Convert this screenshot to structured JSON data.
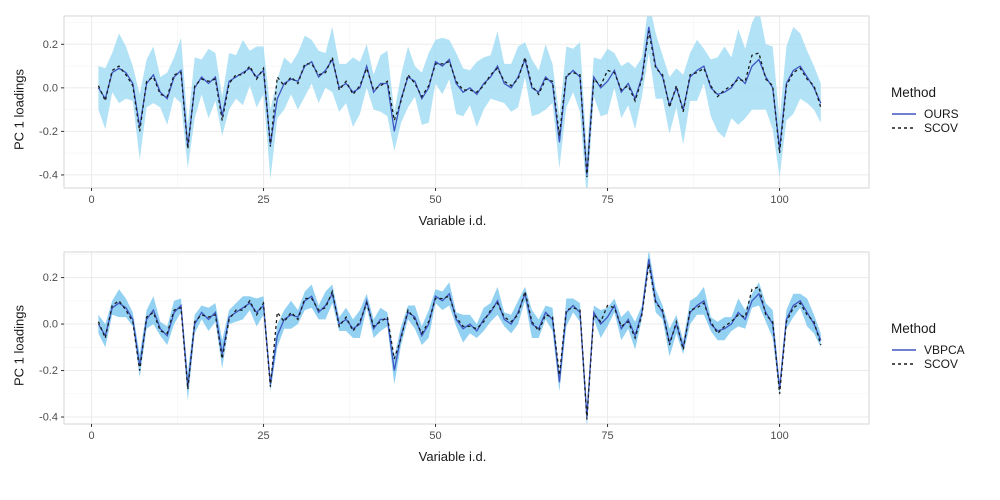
{
  "chart_data": [
    {
      "type": "line",
      "title": "",
      "xlabel": "Variable i.d.",
      "ylabel": "PC 1 loadings",
      "legend_title": "Method",
      "legend_position": "right",
      "grid": true,
      "xlim": [
        -4,
        113
      ],
      "ylim": [
        -0.46,
        0.33
      ],
      "x_ticks": [
        0,
        25,
        50,
        75,
        100
      ],
      "x_tick_labels": [
        "0",
        "25",
        "50",
        "75",
        "100"
      ],
      "x_minor": [
        12.5,
        37.5,
        62.5,
        87.5
      ],
      "y_ticks": [
        0.2,
        0.0,
        -0.2,
        -0.4
      ],
      "y_tick_labels": [
        "0.2",
        "0.0",
        "-0.2",
        "-0.4"
      ],
      "y_minor": [
        0.3,
        0.1,
        -0.1,
        -0.3
      ],
      "colors": {
        "panel_bg": "#ffffff",
        "panel_border": "#d6d6d6",
        "grid_major": "#ebebeb",
        "grid_minor": "#f6f6f6",
        "tick_text": "#4d4d4d",
        "tick_mark": "#333333"
      },
      "band": {
        "color": "#9fdbf4",
        "opacity": 0.8,
        "halfwidths": [
          0.1,
          0.14,
          0.09,
          0.16,
          0.12,
          0.08,
          0.15,
          0.11,
          0.13,
          0.07,
          0.12,
          0.09,
          0.15,
          0.1,
          0.14,
          0.08,
          0.16,
          0.11,
          0.09,
          0.13,
          0.1,
          0.15,
          0.08,
          0.14,
          0.11,
          0.16,
          0.09,
          0.12,
          0.07,
          0.13,
          0.14,
          0.1,
          0.12,
          0.08,
          0.15,
          0.11,
          0.09,
          0.16,
          0.12,
          0.1,
          0.08,
          0.13,
          0.15,
          0.09,
          0.11,
          0.14,
          0.07,
          0.12,
          0.16,
          0.1,
          0.13,
          0.09,
          0.14,
          0.11,
          0.08,
          0.15,
          0.12,
          0.1,
          0.16,
          0.09,
          0.11,
          0.14,
          0.08,
          0.13,
          0.1,
          0.15,
          0.09,
          0.12,
          0.14,
          0.1,
          0.16,
          0.11,
          0.09,
          0.13,
          0.15,
          0.08,
          0.12,
          0.1,
          0.14,
          0.09,
          0.12,
          0.15,
          0.1,
          0.13,
          0.09,
          0.16,
          0.11,
          0.14,
          0.08,
          0.13,
          0.17,
          0.21,
          0.14,
          0.22,
          0.16,
          0.2,
          0.23,
          0.15,
          0.19,
          0.13,
          0.17,
          0.2,
          0.15,
          0.12,
          0.1,
          0.09
        ]
      },
      "x": [
        1,
        2,
        3,
        4,
        5,
        6,
        7,
        8,
        9,
        10,
        11,
        12,
        13,
        14,
        15,
        16,
        17,
        18,
        19,
        20,
        21,
        22,
        23,
        24,
        25,
        26,
        27,
        28,
        29,
        30,
        31,
        32,
        33,
        34,
        35,
        36,
        37,
        38,
        39,
        40,
        41,
        42,
        43,
        44,
        45,
        46,
        47,
        48,
        49,
        50,
        51,
        52,
        53,
        54,
        55,
        56,
        57,
        58,
        59,
        60,
        61,
        62,
        63,
        64,
        65,
        66,
        67,
        68,
        69,
        70,
        71,
        72,
        73,
        74,
        75,
        76,
        77,
        78,
        79,
        80,
        81,
        82,
        83,
        84,
        85,
        86,
        87,
        88,
        89,
        90,
        91,
        92,
        93,
        94,
        95,
        96,
        97,
        98,
        99,
        100,
        101,
        102,
        103,
        104,
        105,
        106
      ],
      "series": [
        {
          "name": "OURS",
          "style": "solid",
          "color": "#3e57c2",
          "values": [
            0.0,
            -0.05,
            0.07,
            0.09,
            0.07,
            0.02,
            -0.18,
            0.02,
            0.06,
            -0.02,
            -0.05,
            0.05,
            0.08,
            -0.27,
            0.0,
            0.05,
            0.02,
            0.05,
            -0.13,
            0.03,
            0.05,
            0.07,
            0.09,
            0.05,
            0.08,
            -0.26,
            -0.05,
            0.02,
            0.04,
            0.03,
            0.1,
            0.12,
            0.05,
            0.08,
            0.13,
            0.0,
            0.02,
            -0.02,
            0.0,
            0.1,
            -0.02,
            0.02,
            0.02,
            -0.2,
            -0.05,
            0.05,
            0.03,
            -0.05,
            0.0,
            0.12,
            0.1,
            0.13,
            0.02,
            -0.02,
            0.0,
            -0.03,
            0.02,
            0.05,
            0.1,
            0.02,
            0.0,
            0.05,
            0.13,
            0.0,
            -0.02,
            0.05,
            0.02,
            -0.25,
            0.05,
            0.08,
            0.05,
            -0.4,
            0.05,
            0.0,
            0.03,
            0.08,
            -0.02,
            0.02,
            -0.05,
            0.05,
            0.28,
            0.1,
            0.05,
            -0.08,
            0.0,
            -0.1,
            0.05,
            0.08,
            0.1,
            0.0,
            -0.03,
            -0.02,
            0.0,
            0.05,
            0.02,
            0.1,
            0.13,
            0.05,
            0.0,
            -0.28,
            0.02,
            0.08,
            0.1,
            0.05,
            0.0,
            -0.07
          ]
        },
        {
          "name": "SCOV",
          "style": "dashed",
          "color": "#1a1a1a",
          "values": [
            0.01,
            -0.06,
            0.08,
            0.1,
            0.06,
            0.01,
            -0.2,
            0.03,
            0.05,
            -0.03,
            -0.04,
            0.06,
            0.07,
            -0.28,
            0.01,
            0.04,
            0.03,
            0.04,
            -0.15,
            0.02,
            0.06,
            0.06,
            0.1,
            0.04,
            0.09,
            -0.27,
            0.05,
            0.01,
            0.05,
            0.02,
            0.11,
            0.11,
            0.06,
            0.07,
            0.14,
            -0.01,
            0.03,
            -0.03,
            0.01,
            0.09,
            -0.01,
            0.01,
            0.03,
            -0.15,
            -0.06,
            0.06,
            0.02,
            -0.04,
            0.01,
            0.11,
            0.11,
            0.12,
            0.03,
            -0.01,
            -0.01,
            -0.02,
            0.01,
            0.06,
            0.09,
            0.03,
            0.01,
            0.04,
            0.14,
            0.01,
            -0.03,
            0.04,
            0.03,
            -0.22,
            0.06,
            0.07,
            0.06,
            -0.41,
            0.04,
            0.01,
            0.08,
            0.07,
            -0.01,
            0.01,
            -0.06,
            0.04,
            0.26,
            0.09,
            0.06,
            -0.09,
            0.01,
            -0.11,
            0.06,
            0.07,
            0.09,
            0.01,
            -0.04,
            -0.01,
            0.01,
            0.04,
            0.03,
            0.15,
            0.16,
            0.04,
            0.01,
            -0.3,
            0.01,
            0.07,
            0.09,
            0.04,
            0.01,
            -0.09
          ]
        }
      ]
    },
    {
      "type": "line",
      "title": "",
      "xlabel": "Variable i.d.",
      "ylabel": "PC 1 loadings",
      "legend_title": "Method",
      "legend_position": "right",
      "grid": true,
      "xlim": [
        -4,
        113
      ],
      "ylim": [
        -0.43,
        0.31
      ],
      "x_ticks": [
        0,
        25,
        50,
        75,
        100
      ],
      "x_tick_labels": [
        "0",
        "25",
        "50",
        "75",
        "100"
      ],
      "x_minor": [
        12.5,
        37.5,
        62.5,
        87.5
      ],
      "y_ticks": [
        0.2,
        0.0,
        -0.2,
        -0.4
      ],
      "y_tick_labels": [
        "0.2",
        "0.0",
        "-0.2",
        "-0.4"
      ],
      "y_minor": [
        0.3,
        0.1,
        -0.1,
        -0.3
      ],
      "colors": {
        "panel_bg": "#ffffff",
        "panel_border": "#d6d6d6",
        "grid_major": "#ebebeb",
        "grid_minor": "#f6f6f6",
        "tick_text": "#4d4d4d",
        "tick_mark": "#333333"
      },
      "band": {
        "color": "#6fc2ee",
        "opacity": 0.75,
        "halfwidths": [
          0.04,
          0.05,
          0.03,
          0.06,
          0.04,
          0.03,
          0.05,
          0.04,
          0.06,
          0.03,
          0.04,
          0.05,
          0.03,
          0.06,
          0.04,
          0.03,
          0.05,
          0.04,
          0.06,
          0.03,
          0.04,
          0.05,
          0.03,
          0.06,
          0.04,
          0.03,
          0.05,
          0.04,
          0.06,
          0.03,
          0.04,
          0.05,
          0.03,
          0.06,
          0.04,
          0.03,
          0.05,
          0.04,
          0.06,
          0.03,
          0.04,
          0.05,
          0.03,
          0.06,
          0.04,
          0.03,
          0.05,
          0.04,
          0.06,
          0.03,
          0.04,
          0.05,
          0.03,
          0.06,
          0.04,
          0.03,
          0.05,
          0.04,
          0.06,
          0.03,
          0.04,
          0.05,
          0.03,
          0.06,
          0.04,
          0.03,
          0.05,
          0.04,
          0.06,
          0.03,
          0.04,
          0.05,
          0.03,
          0.06,
          0.04,
          0.03,
          0.05,
          0.04,
          0.06,
          0.03,
          0.04,
          0.05,
          0.03,
          0.06,
          0.04,
          0.03,
          0.05,
          0.04,
          0.06,
          0.03,
          0.04,
          0.05,
          0.03,
          0.06,
          0.04,
          0.03,
          0.05,
          0.04,
          0.06,
          0.03,
          0.04,
          0.05,
          0.03,
          0.06,
          0.04,
          0.03
        ]
      },
      "x": [
        1,
        2,
        3,
        4,
        5,
        6,
        7,
        8,
        9,
        10,
        11,
        12,
        13,
        14,
        15,
        16,
        17,
        18,
        19,
        20,
        21,
        22,
        23,
        24,
        25,
        26,
        27,
        28,
        29,
        30,
        31,
        32,
        33,
        34,
        35,
        36,
        37,
        38,
        39,
        40,
        41,
        42,
        43,
        44,
        45,
        46,
        47,
        48,
        49,
        50,
        51,
        52,
        53,
        54,
        55,
        56,
        57,
        58,
        59,
        60,
        61,
        62,
        63,
        64,
        65,
        66,
        67,
        68,
        69,
        70,
        71,
        72,
        73,
        74,
        75,
        76,
        77,
        78,
        79,
        80,
        81,
        82,
        83,
        84,
        85,
        86,
        87,
        88,
        89,
        90,
        91,
        92,
        93,
        94,
        95,
        96,
        97,
        98,
        99,
        100,
        101,
        102,
        103,
        104,
        105,
        106
      ],
      "series": [
        {
          "name": "VBPCA",
          "style": "solid",
          "color": "#3e57c2",
          "values": [
            0.0,
            -0.05,
            0.07,
            0.09,
            0.07,
            0.02,
            -0.18,
            0.02,
            0.06,
            -0.02,
            -0.05,
            0.05,
            0.08,
            -0.27,
            0.0,
            0.05,
            0.02,
            0.05,
            -0.13,
            0.03,
            0.05,
            0.07,
            0.09,
            0.05,
            0.08,
            -0.26,
            -0.05,
            0.02,
            0.04,
            0.03,
            0.1,
            0.12,
            0.05,
            0.08,
            0.13,
            0.0,
            0.02,
            -0.02,
            0.0,
            0.1,
            -0.02,
            0.02,
            0.02,
            -0.2,
            -0.05,
            0.05,
            0.03,
            -0.05,
            0.0,
            0.12,
            0.1,
            0.13,
            0.02,
            -0.02,
            0.0,
            -0.03,
            0.02,
            0.05,
            0.1,
            0.02,
            0.0,
            0.05,
            0.13,
            0.0,
            -0.02,
            0.05,
            0.02,
            -0.25,
            0.05,
            0.08,
            0.05,
            -0.4,
            0.05,
            0.0,
            0.03,
            0.08,
            -0.02,
            0.02,
            -0.05,
            0.05,
            0.28,
            0.1,
            0.05,
            -0.08,
            0.0,
            -0.1,
            0.05,
            0.08,
            0.1,
            0.0,
            -0.03,
            -0.02,
            0.0,
            0.05,
            0.02,
            0.1,
            0.13,
            0.05,
            0.0,
            -0.28,
            0.02,
            0.08,
            0.1,
            0.05,
            0.0,
            -0.07
          ]
        },
        {
          "name": "SCOV",
          "style": "dashed",
          "color": "#1a1a1a",
          "values": [
            0.01,
            -0.06,
            0.08,
            0.1,
            0.06,
            0.01,
            -0.2,
            0.03,
            0.05,
            -0.03,
            -0.04,
            0.06,
            0.07,
            -0.28,
            0.01,
            0.04,
            0.03,
            0.04,
            -0.15,
            0.02,
            0.06,
            0.06,
            0.1,
            0.04,
            0.09,
            -0.27,
            0.05,
            0.01,
            0.05,
            0.02,
            0.11,
            0.11,
            0.06,
            0.07,
            0.14,
            -0.01,
            0.03,
            -0.03,
            0.01,
            0.09,
            -0.01,
            0.01,
            0.03,
            -0.15,
            -0.06,
            0.06,
            0.02,
            -0.04,
            0.01,
            0.11,
            0.11,
            0.12,
            0.03,
            -0.01,
            -0.01,
            -0.02,
            0.01,
            0.06,
            0.09,
            0.03,
            0.01,
            0.04,
            0.14,
            0.01,
            -0.03,
            0.04,
            0.03,
            -0.22,
            0.06,
            0.07,
            0.06,
            -0.41,
            0.04,
            0.01,
            0.08,
            0.07,
            -0.01,
            0.01,
            -0.06,
            0.04,
            0.26,
            0.09,
            0.06,
            -0.09,
            0.01,
            -0.11,
            0.06,
            0.07,
            0.09,
            0.01,
            -0.04,
            -0.01,
            0.01,
            0.04,
            0.03,
            0.15,
            0.16,
            0.04,
            0.01,
            -0.3,
            0.01,
            0.07,
            0.09,
            0.04,
            0.01,
            -0.09
          ]
        }
      ]
    }
  ]
}
